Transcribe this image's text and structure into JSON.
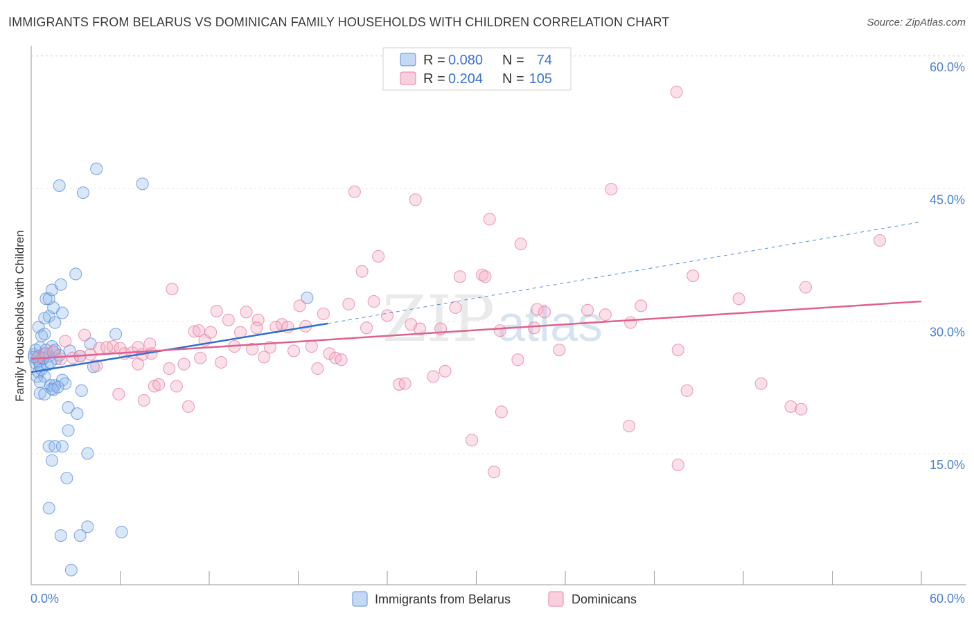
{
  "header": {
    "title": "IMMIGRANTS FROM BELARUS VS DOMINICAN FAMILY HOUSEHOLDS WITH CHILDREN CORRELATION CHART",
    "source": "Source: ZipAtlas.com"
  },
  "watermark": {
    "zip": "ZIP",
    "atlas": "atlas"
  },
  "legend": {
    "r_label": "R =",
    "n_label": "N =",
    "rows": [
      {
        "r": "0.080",
        "n": "74",
        "color": "#8fb3e8"
      },
      {
        "r": "0.204",
        "n": "105",
        "color": "#f2a8bf"
      }
    ]
  },
  "chart_data": {
    "type": "scatter",
    "title": "IMMIGRANTS FROM BELARUS VS DOMINICAN FAMILY HOUSEHOLDS WITH CHILDREN CORRELATION CHART",
    "xlabel": "",
    "ylabel": "Family Households with Children",
    "xlim": [
      0,
      60
    ],
    "ylim": [
      0,
      62
    ],
    "x_tick_labels": [
      "0.0%",
      "60.0%"
    ],
    "y_ticks": [
      15,
      30,
      45,
      60
    ],
    "y_tick_labels": [
      "15.0%",
      "30.0%",
      "45.0%",
      "60.0%"
    ],
    "series": [
      {
        "name": "Immigrants from Belarus",
        "color": "#5b8fd9",
        "fill": "rgba(150,185,235,0.35)",
        "trend": {
          "x1": 0,
          "y1": 25.5,
          "x2": 20,
          "y2": 31.0,
          "dash_to_x": 60,
          "dash_to_y": 42.5,
          "color": "#2b6fd1"
        },
        "points": [
          [
            0.2,
            27.5
          ],
          [
            0.3,
            28
          ],
          [
            0.4,
            27
          ],
          [
            0.3,
            26.5
          ],
          [
            0.5,
            27.3
          ],
          [
            0.6,
            28.3
          ],
          [
            0.5,
            26.7
          ],
          [
            0.8,
            27
          ],
          [
            0.9,
            27.6
          ],
          [
            0.6,
            26.2
          ],
          [
            0.4,
            25
          ],
          [
            0.5,
            25.5
          ],
          [
            0.7,
            25.8
          ],
          [
            1.1,
            26.3
          ],
          [
            1.2,
            27.3
          ],
          [
            1.5,
            27.8
          ],
          [
            1.7,
            27
          ],
          [
            1.9,
            27.4
          ],
          [
            1.4,
            28.4
          ],
          [
            1.0,
            28
          ],
          [
            0.5,
            30.6
          ],
          [
            0.7,
            29.6
          ],
          [
            0.9,
            29.8
          ],
          [
            1.2,
            31.8
          ],
          [
            0.9,
            31.6
          ],
          [
            1.6,
            31.1
          ],
          [
            2.1,
            32.2
          ],
          [
            1.5,
            32.8
          ],
          [
            1.0,
            33.8
          ],
          [
            1.2,
            33.8
          ],
          [
            1.4,
            34.8
          ],
          [
            2.0,
            35.4
          ],
          [
            3.0,
            36.6
          ],
          [
            1.9,
            46.6
          ],
          [
            3.5,
            45.8
          ],
          [
            4.4,
            48.5
          ],
          [
            7.5,
            46.8
          ],
          [
            1.6,
            28
          ],
          [
            0.9,
            25
          ],
          [
            1.3,
            24
          ],
          [
            1.6,
            24
          ],
          [
            1.4,
            23.6
          ],
          [
            2.1,
            24.6
          ],
          [
            2.3,
            24.2
          ],
          [
            1.5,
            23.5
          ],
          [
            0.6,
            23.1
          ],
          [
            0.9,
            23
          ],
          [
            1.8,
            23.8
          ],
          [
            3.4,
            23.4
          ],
          [
            2.5,
            21.5
          ],
          [
            3.1,
            20.8
          ],
          [
            2.5,
            18.9
          ],
          [
            1.2,
            17.1
          ],
          [
            1.6,
            17.1
          ],
          [
            2.1,
            17.1
          ],
          [
            3.8,
            16.3
          ],
          [
            1.4,
            15.5
          ],
          [
            2.4,
            13.5
          ],
          [
            1.2,
            10.1
          ],
          [
            3.8,
            8
          ],
          [
            2.0,
            7
          ],
          [
            3.3,
            7
          ],
          [
            6.1,
            7.4
          ],
          [
            2.7,
            3.1
          ],
          [
            4.0,
            28.7
          ],
          [
            4.2,
            26.1
          ],
          [
            5.7,
            29.8
          ],
          [
            18.6,
            33.9
          ],
          [
            0.2,
            27.2
          ],
          [
            0.8,
            27.1
          ],
          [
            1.3,
            26.6
          ],
          [
            0.6,
            24.4
          ],
          [
            2.6,
            27.9
          ],
          [
            3.3,
            27.3
          ]
        ]
      },
      {
        "name": "Dominicans",
        "color": "#e87fa3",
        "fill": "rgba(242,168,191,0.35)",
        "trend": {
          "x1": 0,
          "y1": 27.0,
          "x2": 60,
          "y2": 33.5,
          "color": "#e0608e"
        },
        "points": [
          [
            0.5,
            27.2
          ],
          [
            1.0,
            27.6
          ],
          [
            1.5,
            27.8
          ],
          [
            2.0,
            27
          ],
          [
            2.3,
            29
          ],
          [
            2.8,
            27.1
          ],
          [
            3.3,
            27.3
          ],
          [
            3.6,
            29.7
          ],
          [
            4.0,
            27.5
          ],
          [
            4.4,
            26.2
          ],
          [
            4.6,
            28.2
          ],
          [
            5.1,
            28.3
          ],
          [
            5.5,
            28.4
          ],
          [
            6.0,
            28.2
          ],
          [
            6.3,
            27.6
          ],
          [
            6.8,
            27.7
          ],
          [
            7.2,
            28.3
          ],
          [
            7.5,
            27.5
          ],
          [
            8.0,
            28.7
          ],
          [
            8.3,
            23.9
          ],
          [
            7.6,
            22.3
          ],
          [
            5.9,
            23
          ],
          [
            7.2,
            26.4
          ],
          [
            8.6,
            24.1
          ],
          [
            9.3,
            25.9
          ],
          [
            9.8,
            23.9
          ],
          [
            9.5,
            34.9
          ],
          [
            10.3,
            26.4
          ],
          [
            10.6,
            21.6
          ],
          [
            11.0,
            30.1
          ],
          [
            11.4,
            27.1
          ],
          [
            11.7,
            29.1
          ],
          [
            12.1,
            30
          ],
          [
            12.5,
            32.4
          ],
          [
            12.8,
            26.6
          ],
          [
            13.3,
            31.4
          ],
          [
            13.7,
            28.4
          ],
          [
            14.1,
            30
          ],
          [
            14.5,
            32.3
          ],
          [
            14.9,
            28.1
          ],
          [
            15.3,
            31.4
          ],
          [
            15.7,
            27.2
          ],
          [
            16.1,
            28.3
          ],
          [
            16.5,
            30.6
          ],
          [
            16.9,
            30.9
          ],
          [
            17.3,
            30.6
          ],
          [
            17.7,
            27.9
          ],
          [
            18.1,
            33
          ],
          [
            18.5,
            30.7
          ],
          [
            18.9,
            28.4
          ],
          [
            19.3,
            25.9
          ],
          [
            19.7,
            32.1
          ],
          [
            20.1,
            27.6
          ],
          [
            20.5,
            27.1
          ],
          [
            20.9,
            26.9
          ],
          [
            21.4,
            33.2
          ],
          [
            21.8,
            45.9
          ],
          [
            22.3,
            36.9
          ],
          [
            22.6,
            30.5
          ],
          [
            23.1,
            33.5
          ],
          [
            23.4,
            38.6
          ],
          [
            24.0,
            31.9
          ],
          [
            24.8,
            24.1
          ],
          [
            25.2,
            24.2
          ],
          [
            25.6,
            30.9
          ],
          [
            25.9,
            45
          ],
          [
            27.1,
            25
          ],
          [
            27.6,
            30.4
          ],
          [
            27.9,
            25.6
          ],
          [
            28.6,
            32.8
          ],
          [
            28.9,
            36.3
          ],
          [
            29.7,
            17.8
          ],
          [
            30.4,
            36.5
          ],
          [
            30.6,
            36.3
          ],
          [
            30.9,
            42.8
          ],
          [
            31.2,
            14.2
          ],
          [
            31.7,
            21
          ],
          [
            32.8,
            26.9
          ],
          [
            33.0,
            40
          ],
          [
            33.9,
            30.5
          ],
          [
            34.1,
            32.6
          ],
          [
            34.6,
            32.3
          ],
          [
            35.6,
            28
          ],
          [
            37.5,
            32.5
          ],
          [
            38.7,
            32
          ],
          [
            39.1,
            46.2
          ],
          [
            40.3,
            19.4
          ],
          [
            40.4,
            31.1
          ],
          [
            41.1,
            33
          ],
          [
            43.6,
            28
          ],
          [
            43.5,
            57.2
          ],
          [
            43.6,
            15
          ],
          [
            44.2,
            23.4
          ],
          [
            44.6,
            36.4
          ],
          [
            47.7,
            33.8
          ],
          [
            49.2,
            24.2
          ],
          [
            51.2,
            21.6
          ],
          [
            51.9,
            21.3
          ],
          [
            52.2,
            35.1
          ],
          [
            57.2,
            40.4
          ],
          [
            8.1,
            27.6
          ],
          [
            11.3,
            30.2
          ],
          [
            15.2,
            30.5
          ],
          [
            26.2,
            30.4
          ],
          [
            31.6,
            30.2
          ]
        ]
      }
    ]
  },
  "bottom_legend": [
    {
      "label": "Immigrants from Belarus"
    },
    {
      "label": "Dominicans"
    }
  ]
}
